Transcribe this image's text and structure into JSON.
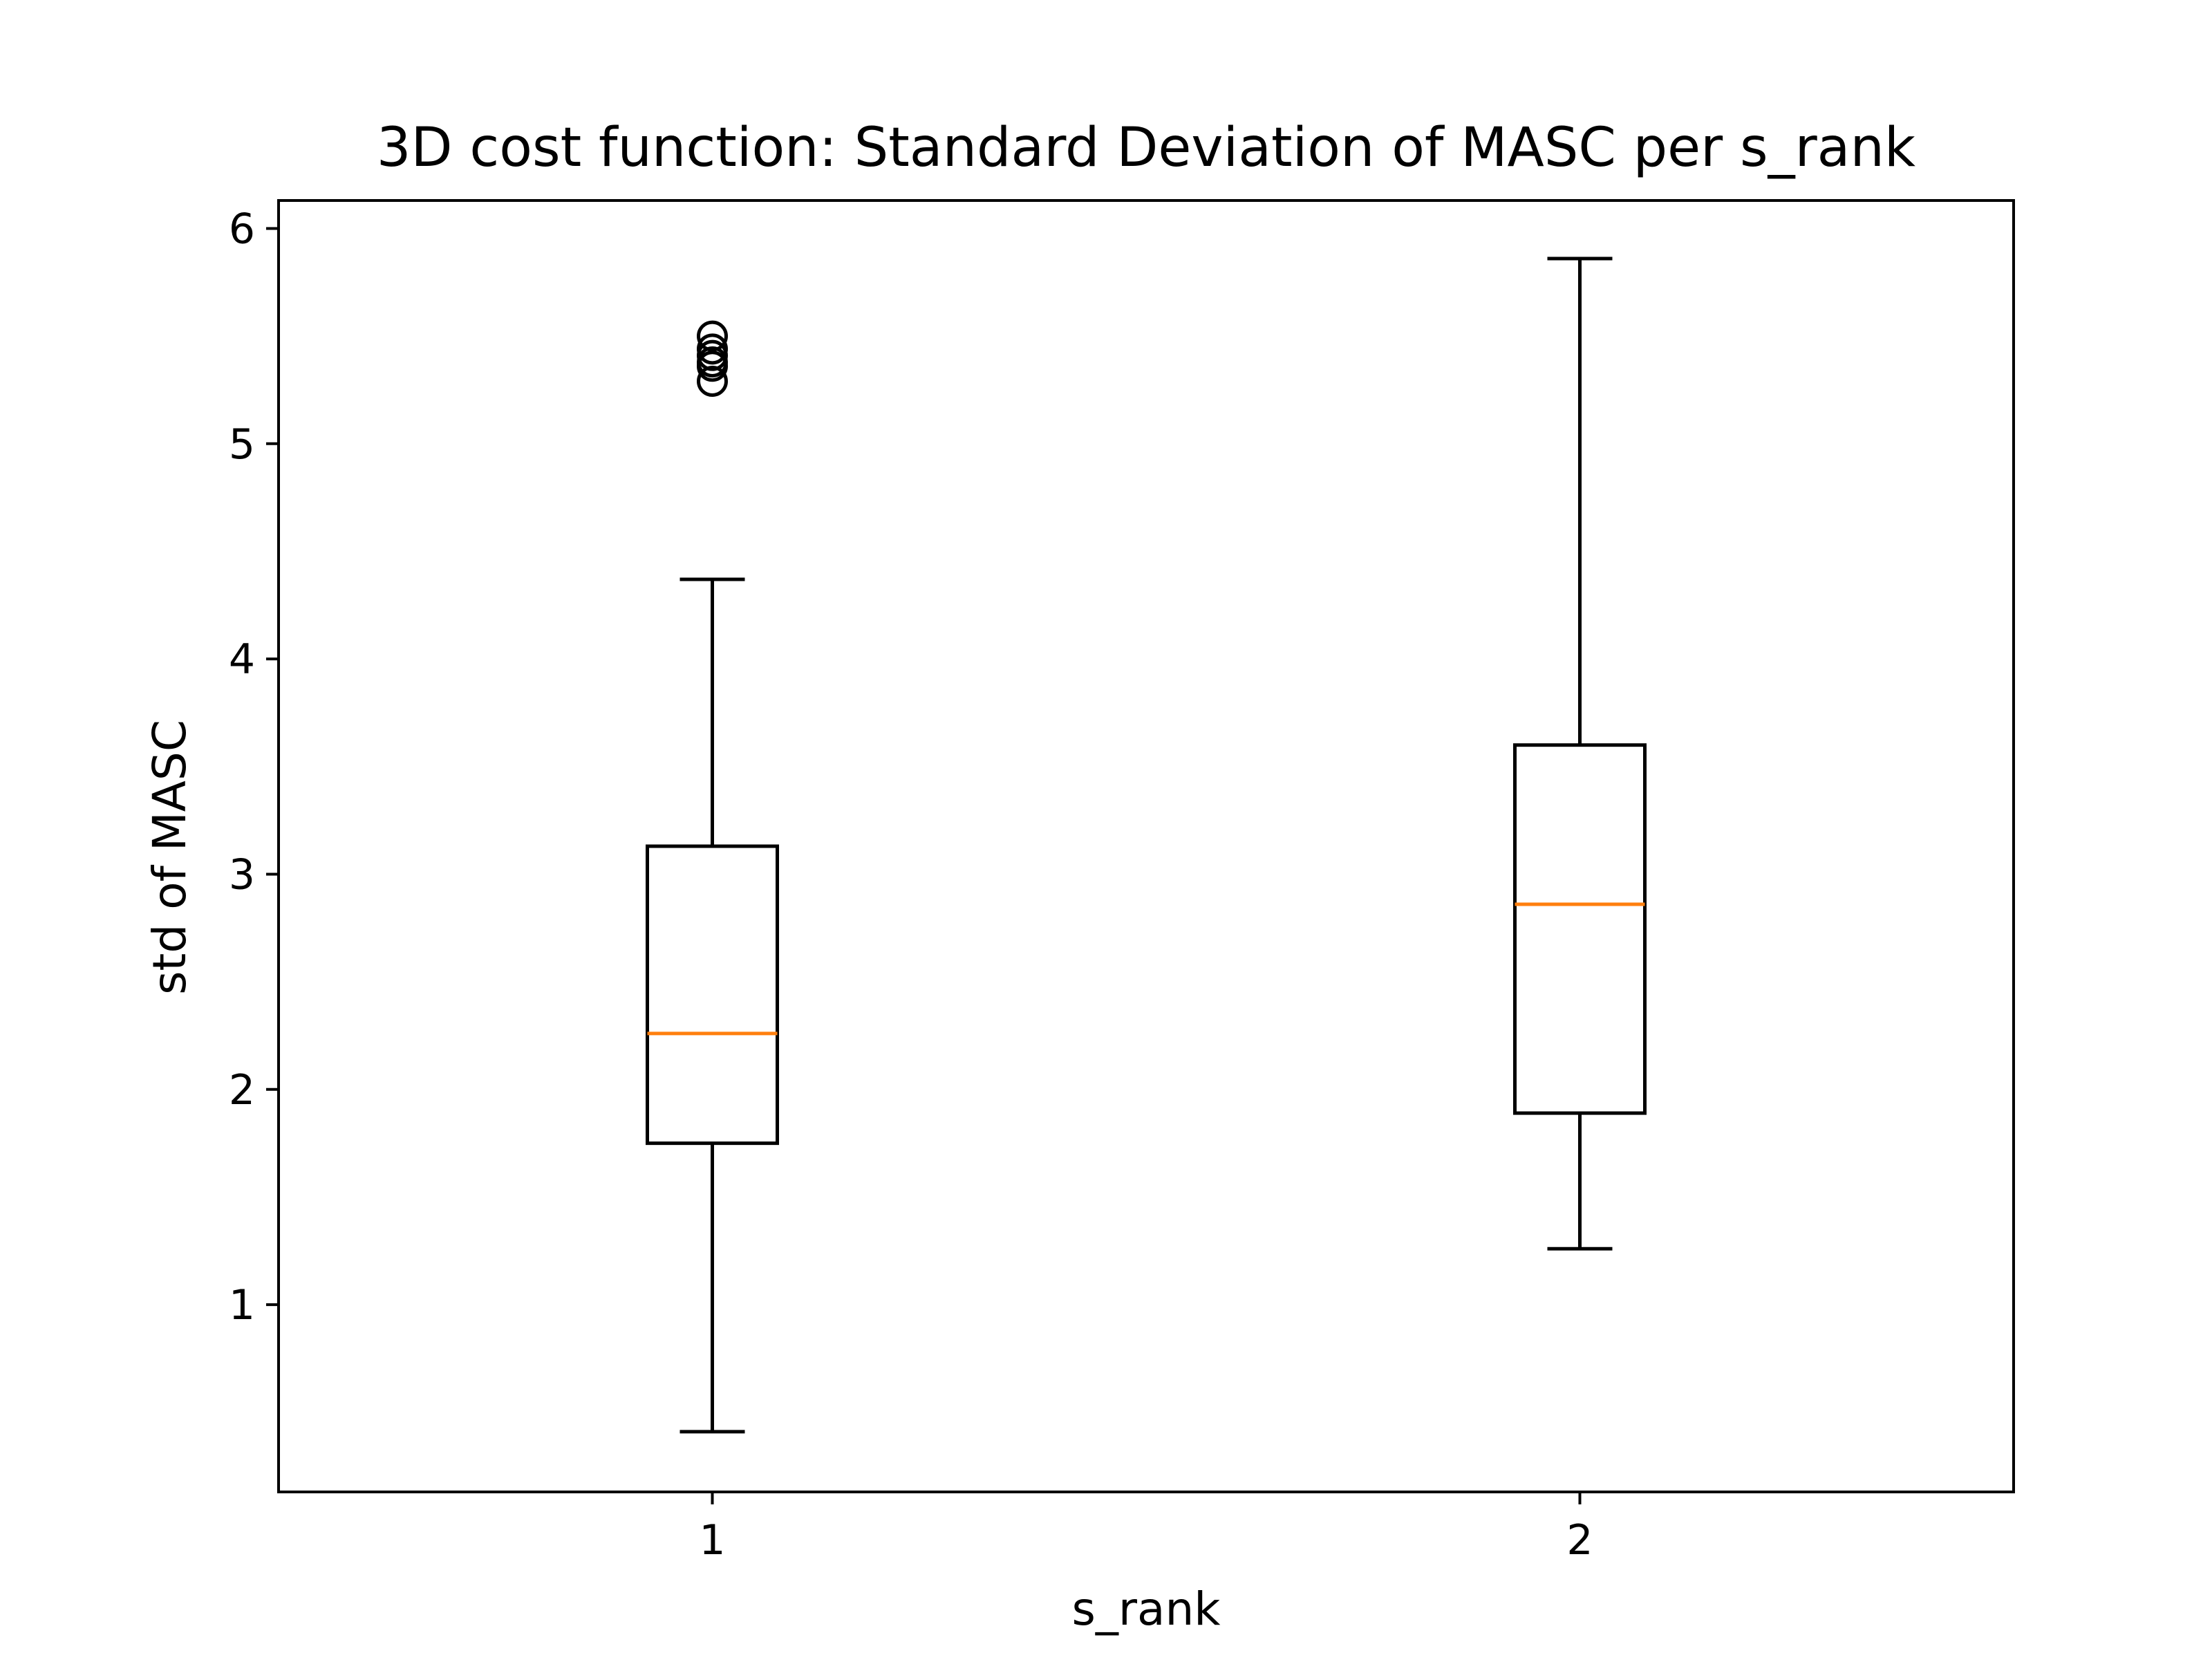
{
  "chart_data": {
    "type": "box",
    "title": "3D cost function: Standard Deviation of MASC per s_rank",
    "xlabel": "s_rank",
    "ylabel": "std of MASC",
    "categories": [
      "1",
      "2"
    ],
    "ylim": [
      0.13,
      6.13
    ],
    "yticks": [
      1,
      2,
      3,
      4,
      5,
      6
    ],
    "grid": false,
    "legend": "none",
    "colors": {
      "box": "#000000",
      "median": "#ff7f0e",
      "background": "#ffffff"
    },
    "boxes": [
      {
        "category": "1",
        "whisker_low": 0.41,
        "q1": 1.75,
        "median": 2.26,
        "q3": 3.13,
        "whisker_high": 4.37,
        "outliers": [
          5.29,
          5.36,
          5.38,
          5.41,
          5.44,
          5.5
        ]
      },
      {
        "category": "2",
        "whisker_low": 1.26,
        "q1": 1.89,
        "median": 2.86,
        "q3": 3.6,
        "whisker_high": 5.86,
        "outliers": []
      }
    ]
  }
}
